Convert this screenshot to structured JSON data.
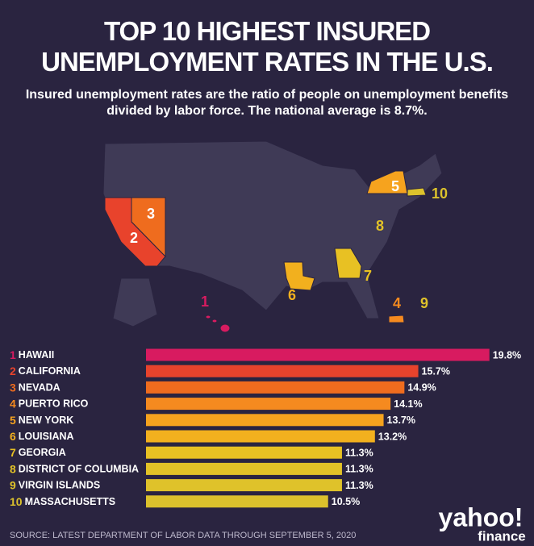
{
  "chart_data": {
    "type": "bar",
    "orientation": "horizontal",
    "title": "TOP 10 HIGHEST INSURED UNEMPLOYMENT RATES IN THE U.S.",
    "subtitle": "Insured unemployment rates are the ratio of people on unemployment benefits divided by labor force. The national average is 8.7%.",
    "ranks": [
      1,
      2,
      3,
      4,
      5,
      6,
      7,
      8,
      9,
      10
    ],
    "categories": [
      "HAWAII",
      "CALIFORNIA",
      "NEVADA",
      "PUERTO RICO",
      "NEW YORK",
      "LOUISIANA",
      "GEORGIA",
      "DISTRICT OF COLUMBIA",
      "VIRGIN ISLANDS",
      "MASSACHUSETTS"
    ],
    "values": [
      19.8,
      15.7,
      14.9,
      14.1,
      13.7,
      13.2,
      11.3,
      11.3,
      11.3,
      10.5
    ],
    "value_labels": [
      "19.8%",
      "15.7%",
      "14.9%",
      "14.1%",
      "13.7%",
      "13.2%",
      "11.3%",
      "11.3%",
      "11.3%",
      "10.5%"
    ],
    "colors": [
      "#d81b60",
      "#e8432c",
      "#ef6c1e",
      "#f58a1f",
      "#f6a31e",
      "#f2b01e",
      "#e8c123",
      "#e2c227",
      "#dfc22a",
      "#dcc22c"
    ],
    "source": "SOURCE: LATEST DEPARTMENT OF LABOR DATA THROUGH SEPTEMBER 5, 2020",
    "logo": "yahoo!",
    "logo_sub": "finance"
  }
}
